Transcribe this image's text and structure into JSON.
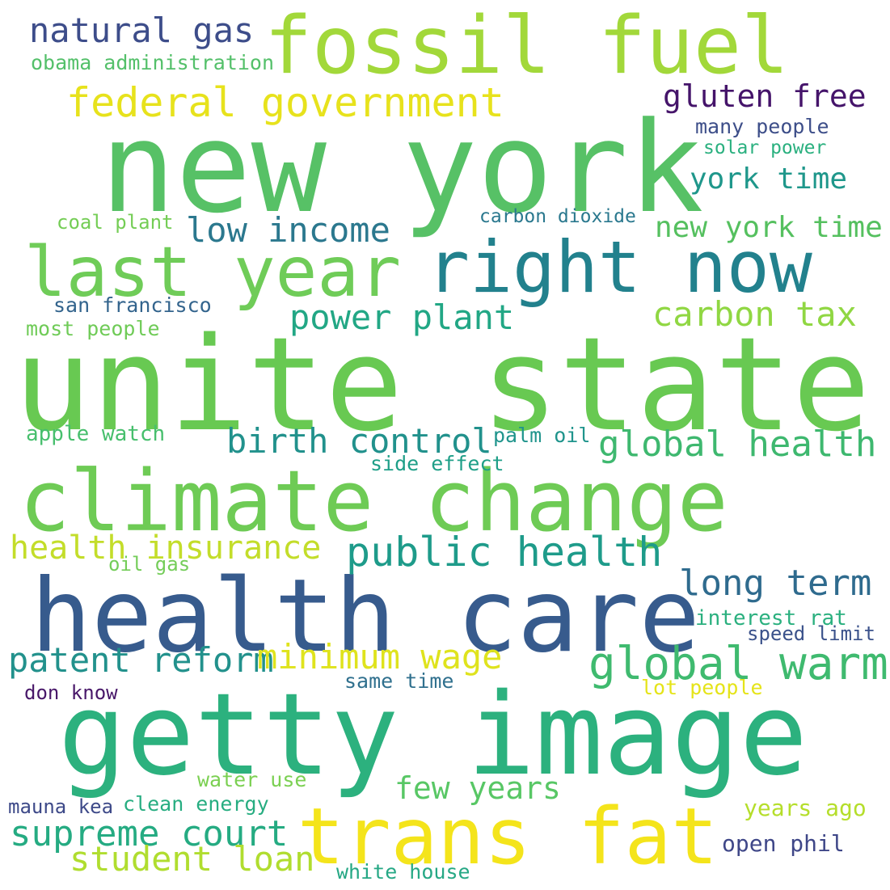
{
  "words": [
    {
      "text": "new york",
      "color": "#57c166"
    },
    {
      "text": "unite state",
      "color": "#68c952"
    },
    {
      "text": "climate change",
      "color": "#6ecb55"
    },
    {
      "text": "health care",
      "color": "#375b8d"
    },
    {
      "text": "getty image",
      "color": "#2cb17e"
    },
    {
      "text": "fossil fuel",
      "color": "#a2d83a"
    },
    {
      "text": "right now",
      "color": "#22818d"
    },
    {
      "text": "last year",
      "color": "#6fcc58"
    },
    {
      "text": "trans fat",
      "color": "#f4e41b"
    },
    {
      "text": "federal government",
      "color": "#e7e21c"
    },
    {
      "text": "natural gas",
      "color": "#3d4d8a"
    },
    {
      "text": "gluten free",
      "color": "#45146a"
    },
    {
      "text": "obama administration",
      "color": "#54c06a"
    },
    {
      "text": "many people",
      "color": "#3d4e89"
    },
    {
      "text": "solar power",
      "color": "#2ab07f"
    },
    {
      "text": "york time",
      "color": "#1f978b"
    },
    {
      "text": "low income",
      "color": "#2b788e"
    },
    {
      "text": "carbon dioxide",
      "color": "#2a788e"
    },
    {
      "text": "coal plant",
      "color": "#74cd55"
    },
    {
      "text": "new york time",
      "color": "#55c05f"
    },
    {
      "text": "san francisco",
      "color": "#33648d"
    },
    {
      "text": "most people",
      "color": "#6fcb57"
    },
    {
      "text": "power plant",
      "color": "#22a785"
    },
    {
      "text": "carbon tax",
      "color": "#90d743"
    },
    {
      "text": "birth control",
      "color": "#21918c"
    },
    {
      "text": "global health",
      "color": "#3eb86f"
    },
    {
      "text": "apple watch",
      "color": "#47bf6d"
    },
    {
      "text": "palm oil",
      "color": "#1f948c"
    },
    {
      "text": "side effect",
      "color": "#1f9f88"
    },
    {
      "text": "health insurance",
      "color": "#c3dd2a"
    },
    {
      "text": "oil gas",
      "color": "#74cd59"
    },
    {
      "text": "public health",
      "color": "#1e9b8a"
    },
    {
      "text": "long term",
      "color": "#2f6b8e"
    },
    {
      "text": "interest rat",
      "color": "#2bb07f"
    },
    {
      "text": "speed limit",
      "color": "#3b528b"
    },
    {
      "text": "patent reform",
      "color": "#22918c"
    },
    {
      "text": "minimum wage",
      "color": "#dfe31d"
    },
    {
      "text": "global warm",
      "color": "#3fba6f"
    },
    {
      "text": "don know",
      "color": "#481769"
    },
    {
      "text": "same time",
      "color": "#30708e"
    },
    {
      "text": "lot people",
      "color": "#e5e419"
    },
    {
      "text": "water use",
      "color": "#7bd052"
    },
    {
      "text": "few years",
      "color": "#58c765"
    },
    {
      "text": "mauna kea",
      "color": "#3e4a89"
    },
    {
      "text": "clean energy",
      "color": "#27ad81"
    },
    {
      "text": "years ago",
      "color": "#b5de2b"
    },
    {
      "text": "supreme court",
      "color": "#25ab82"
    },
    {
      "text": "student loan",
      "color": "#b0dd2f"
    },
    {
      "text": "open phil",
      "color": "#3f4788"
    },
    {
      "text": "white house",
      "color": "#26a885"
    }
  ]
}
